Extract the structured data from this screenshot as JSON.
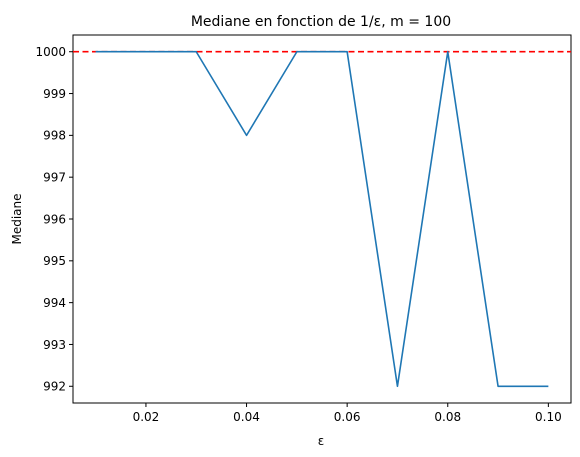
{
  "chart_data": {
    "type": "line",
    "title": "Mediane en fonction de 1/ε,  m = 100",
    "xlabel": "ε",
    "ylabel": "Mediane",
    "xlim": [
      0.0055,
      0.1045
    ],
    "ylim": [
      991.6,
      1000.4
    ],
    "xticks": [
      0.02,
      0.04,
      0.06,
      0.08,
      0.1
    ],
    "xtick_labels": [
      "0.02",
      "0.04",
      "0.06",
      "0.08",
      "0.10"
    ],
    "yticks": [
      992,
      993,
      994,
      995,
      996,
      997,
      998,
      999,
      1000
    ],
    "ytick_labels": [
      "992",
      "993",
      "994",
      "995",
      "996",
      "997",
      "998",
      "999",
      "1000"
    ],
    "grid": false,
    "series": [
      {
        "color": "#1f77b4",
        "style": "solid",
        "x": [
          0.01,
          0.02,
          0.03,
          0.04,
          0.05,
          0.06,
          0.07,
          0.08,
          0.09,
          0.1
        ],
        "y": [
          1000,
          1000,
          1000,
          998,
          1000,
          1000,
          992,
          1000,
          992,
          992
        ]
      }
    ],
    "reference_lines": [
      {
        "orientation": "horizontal",
        "y": 1000,
        "color": "#ff0000",
        "style": "dashed"
      }
    ]
  }
}
